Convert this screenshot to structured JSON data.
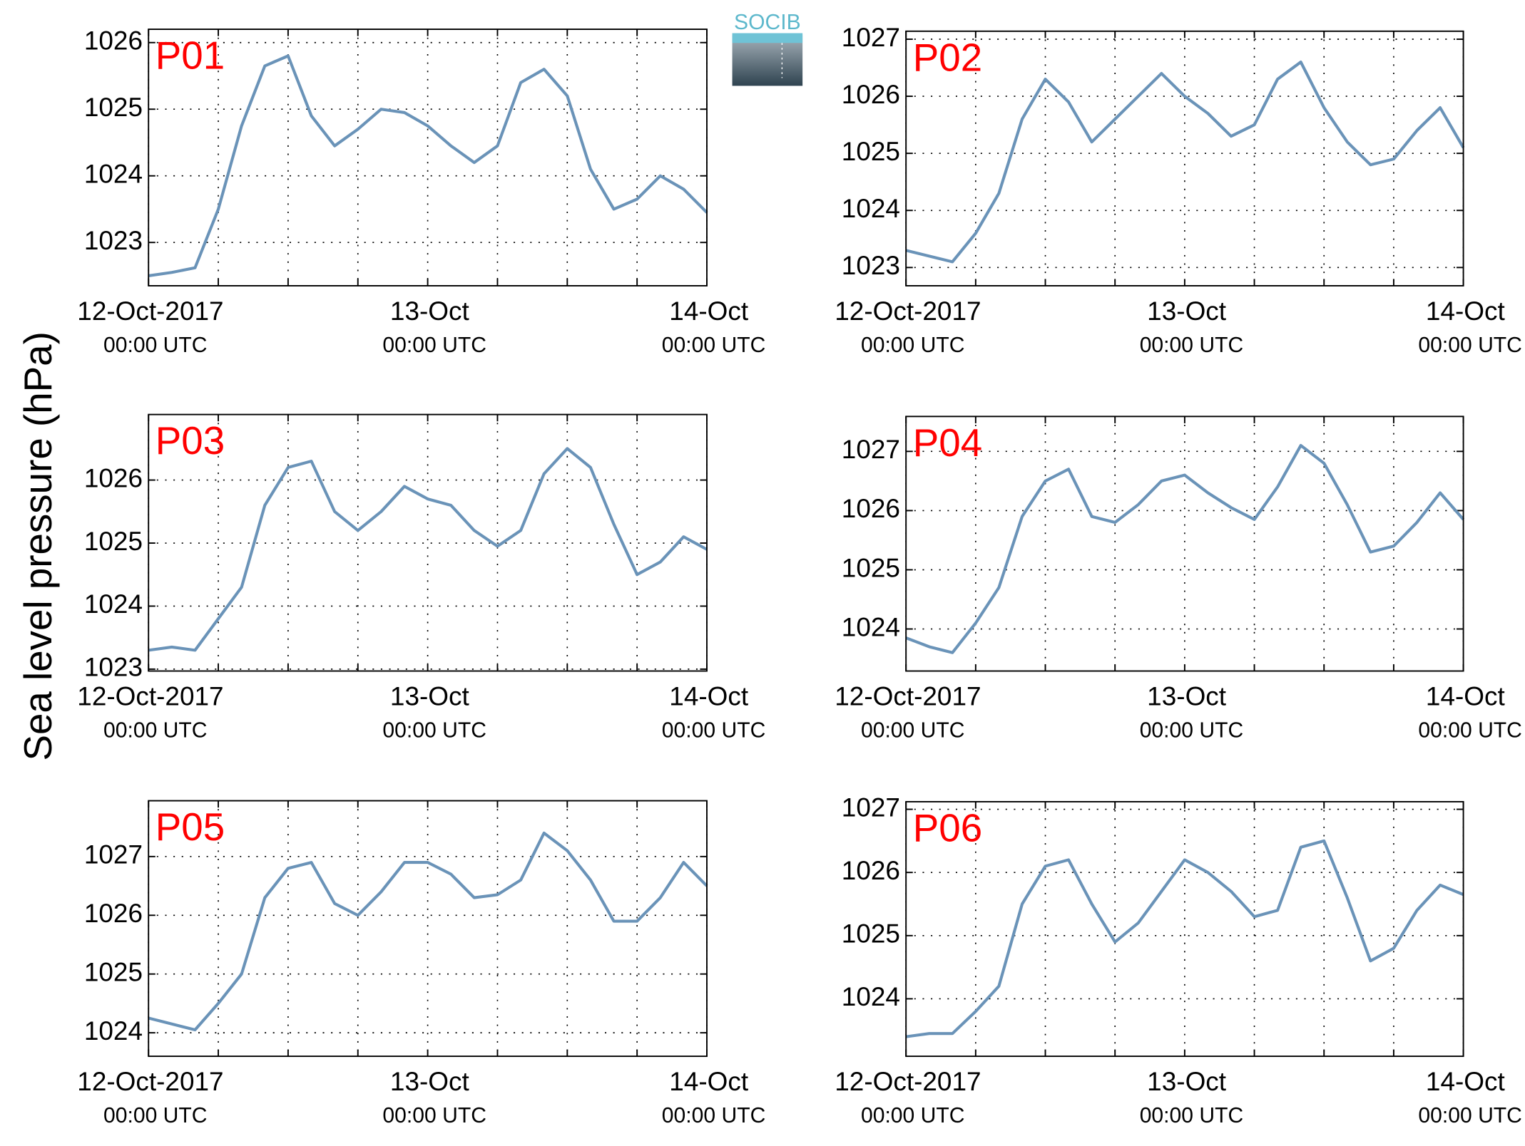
{
  "shared_ylabel": "Sea level pressure (hPa)",
  "logo": "SOCIB",
  "chart_data": [
    {
      "type": "line",
      "title": "P01",
      "color": "#6a93b8",
      "grid": true,
      "xlim": [
        "2017-10-12T00:00",
        "2017-10-14T00:00"
      ],
      "ylim": [
        1022.35,
        1026.2
      ],
      "yticks": [
        1023,
        1024,
        1025,
        1026
      ],
      "xticks": [
        {
          "value": "2017-10-12T00:00",
          "label": [
            "12-Oct-2017",
            "00:00 UTC"
          ]
        },
        {
          "value": "2017-10-12T06:00",
          "label": null
        },
        {
          "value": "2017-10-12T12:00",
          "label": null
        },
        {
          "value": "2017-10-12T18:00",
          "label": null
        },
        {
          "value": "2017-10-13T00:00",
          "label": [
            "13-Oct",
            "00:00 UTC"
          ]
        },
        {
          "value": "2017-10-13T06:00",
          "label": null
        },
        {
          "value": "2017-10-13T12:00",
          "label": null
        },
        {
          "value": "2017-10-13T18:00",
          "label": null
        },
        {
          "value": "2017-10-14T00:00",
          "label": [
            "14-Oct",
            "00:00 UTC"
          ]
        }
      ],
      "x": [
        "2017-10-12T00:00",
        "2017-10-12T02:00",
        "2017-10-12T04:00",
        "2017-10-12T06:00",
        "2017-10-12T08:00",
        "2017-10-12T10:00",
        "2017-10-12T12:00",
        "2017-10-12T14:00",
        "2017-10-12T16:00",
        "2017-10-12T18:00",
        "2017-10-12T20:00",
        "2017-10-12T22:00",
        "2017-10-13T00:00",
        "2017-10-13T02:00",
        "2017-10-13T04:00",
        "2017-10-13T06:00",
        "2017-10-13T08:00",
        "2017-10-13T10:00",
        "2017-10-13T12:00",
        "2017-10-13T14:00",
        "2017-10-13T16:00",
        "2017-10-13T18:00",
        "2017-10-13T20:00",
        "2017-10-13T22:00",
        "2017-10-14T00:00"
      ],
      "values": [
        1022.5,
        1022.55,
        1022.62,
        1023.5,
        1024.75,
        1025.65,
        1025.8,
        1024.9,
        1024.45,
        1024.7,
        1025.0,
        1024.95,
        1024.75,
        1024.45,
        1024.2,
        1024.45,
        1025.4,
        1025.6,
        1025.2,
        1024.1,
        1023.5,
        1023.65,
        1024.0,
        1023.8,
        1023.45
      ]
    },
    {
      "type": "line",
      "title": "P02",
      "color": "#6a93b8",
      "grid": true,
      "xlim": [
        "2017-10-12T00:00",
        "2017-10-14T00:00"
      ],
      "ylim": [
        1022.68,
        1027.14
      ],
      "yticks": [
        1023,
        1024,
        1025,
        1026,
        1027
      ],
      "xticks": [
        {
          "value": "2017-10-12T00:00",
          "label": [
            "12-Oct-2017",
            "00:00 UTC"
          ]
        },
        {
          "value": "2017-10-12T06:00",
          "label": null
        },
        {
          "value": "2017-10-12T12:00",
          "label": null
        },
        {
          "value": "2017-10-12T18:00",
          "label": null
        },
        {
          "value": "2017-10-13T00:00",
          "label": [
            "13-Oct",
            "00:00 UTC"
          ]
        },
        {
          "value": "2017-10-13T06:00",
          "label": null
        },
        {
          "value": "2017-10-13T12:00",
          "label": null
        },
        {
          "value": "2017-10-13T18:00",
          "label": null
        },
        {
          "value": "2017-10-14T00:00",
          "label": [
            "14-Oct",
            "00:00 UTC"
          ]
        }
      ],
      "x": [
        "2017-10-12T00:00",
        "2017-10-12T02:00",
        "2017-10-12T04:00",
        "2017-10-12T06:00",
        "2017-10-12T08:00",
        "2017-10-12T10:00",
        "2017-10-12T12:00",
        "2017-10-12T14:00",
        "2017-10-12T16:00",
        "2017-10-12T18:00",
        "2017-10-12T20:00",
        "2017-10-12T22:00",
        "2017-10-13T00:00",
        "2017-10-13T02:00",
        "2017-10-13T04:00",
        "2017-10-13T06:00",
        "2017-10-13T08:00",
        "2017-10-13T10:00",
        "2017-10-13T12:00",
        "2017-10-13T14:00",
        "2017-10-13T16:00",
        "2017-10-13T18:00",
        "2017-10-13T20:00",
        "2017-10-13T22:00",
        "2017-10-14T00:00"
      ],
      "values": [
        1023.3,
        1023.2,
        1023.1,
        1023.6,
        1024.3,
        1025.6,
        1026.3,
        1025.9,
        1025.2,
        1025.6,
        1026.0,
        1026.4,
        1026.0,
        1025.7,
        1025.3,
        1025.5,
        1026.3,
        1026.6,
        1025.8,
        1025.2,
        1024.8,
        1024.9,
        1025.4,
        1025.8,
        1025.1
      ]
    },
    {
      "type": "line",
      "title": "P03",
      "color": "#6a93b8",
      "grid": true,
      "xlim": [
        "2017-10-12T00:00",
        "2017-10-14T00:00"
      ],
      "ylim": [
        1022.97,
        1027.04
      ],
      "yticks": [
        1023,
        1024,
        1025,
        1026
      ],
      "xticks": [
        {
          "value": "2017-10-12T00:00",
          "label": [
            "12-Oct-2017",
            "00:00 UTC"
          ]
        },
        {
          "value": "2017-10-12T06:00",
          "label": null
        },
        {
          "value": "2017-10-12T12:00",
          "label": null
        },
        {
          "value": "2017-10-12T18:00",
          "label": null
        },
        {
          "value": "2017-10-13T00:00",
          "label": [
            "13-Oct",
            "00:00 UTC"
          ]
        },
        {
          "value": "2017-10-13T06:00",
          "label": null
        },
        {
          "value": "2017-10-13T12:00",
          "label": null
        },
        {
          "value": "2017-10-13T18:00",
          "label": null
        },
        {
          "value": "2017-10-14T00:00",
          "label": [
            "14-Oct",
            "00:00 UTC"
          ]
        }
      ],
      "x": [
        "2017-10-12T00:00",
        "2017-10-12T02:00",
        "2017-10-12T04:00",
        "2017-10-12T06:00",
        "2017-10-12T08:00",
        "2017-10-12T10:00",
        "2017-10-12T12:00",
        "2017-10-12T14:00",
        "2017-10-12T16:00",
        "2017-10-12T18:00",
        "2017-10-12T20:00",
        "2017-10-12T22:00",
        "2017-10-13T00:00",
        "2017-10-13T02:00",
        "2017-10-13T04:00",
        "2017-10-13T06:00",
        "2017-10-13T08:00",
        "2017-10-13T10:00",
        "2017-10-13T12:00",
        "2017-10-13T14:00",
        "2017-10-13T16:00",
        "2017-10-13T18:00",
        "2017-10-13T20:00",
        "2017-10-13T22:00",
        "2017-10-14T00:00"
      ],
      "values": [
        1023.3,
        1023.35,
        1023.3,
        1023.8,
        1024.3,
        1025.6,
        1026.2,
        1026.3,
        1025.5,
        1025.2,
        1025.5,
        1025.9,
        1025.7,
        1025.6,
        1025.2,
        1024.95,
        1025.2,
        1026.1,
        1026.5,
        1026.2,
        1025.3,
        1024.5,
        1024.7,
        1025.1,
        1024.9
      ]
    },
    {
      "type": "line",
      "title": "P04",
      "color": "#6a93b8",
      "grid": true,
      "xlim": [
        "2017-10-12T00:00",
        "2017-10-14T00:00"
      ],
      "ylim": [
        1023.29,
        1027.59
      ],
      "yticks": [
        1024,
        1025,
        1026,
        1027
      ],
      "xticks": [
        {
          "value": "2017-10-12T00:00",
          "label": [
            "12-Oct-2017",
            "00:00 UTC"
          ]
        },
        {
          "value": "2017-10-12T06:00",
          "label": null
        },
        {
          "value": "2017-10-12T12:00",
          "label": null
        },
        {
          "value": "2017-10-12T18:00",
          "label": null
        },
        {
          "value": "2017-10-13T00:00",
          "label": [
            "13-Oct",
            "00:00 UTC"
          ]
        },
        {
          "value": "2017-10-13T06:00",
          "label": null
        },
        {
          "value": "2017-10-13T12:00",
          "label": null
        },
        {
          "value": "2017-10-13T18:00",
          "label": null
        },
        {
          "value": "2017-10-14T00:00",
          "label": [
            "14-Oct",
            "00:00 UTC"
          ]
        }
      ],
      "x": [
        "2017-10-12T00:00",
        "2017-10-12T02:00",
        "2017-10-12T04:00",
        "2017-10-12T06:00",
        "2017-10-12T08:00",
        "2017-10-12T10:00",
        "2017-10-12T12:00",
        "2017-10-12T14:00",
        "2017-10-12T16:00",
        "2017-10-12T18:00",
        "2017-10-12T20:00",
        "2017-10-12T22:00",
        "2017-10-13T00:00",
        "2017-10-13T02:00",
        "2017-10-13T04:00",
        "2017-10-13T06:00",
        "2017-10-13T08:00",
        "2017-10-13T10:00",
        "2017-10-13T12:00",
        "2017-10-13T14:00",
        "2017-10-13T16:00",
        "2017-10-13T18:00",
        "2017-10-13T20:00",
        "2017-10-13T22:00",
        "2017-10-14T00:00"
      ],
      "values": [
        1023.85,
        1023.7,
        1023.6,
        1024.1,
        1024.7,
        1025.9,
        1026.5,
        1026.7,
        1025.9,
        1025.8,
        1026.1,
        1026.5,
        1026.6,
        1026.3,
        1026.05,
        1025.85,
        1026.4,
        1027.1,
        1026.8,
        1026.1,
        1025.3,
        1025.4,
        1025.8,
        1026.3,
        1025.85
      ]
    },
    {
      "type": "line",
      "title": "P05",
      "color": "#6a93b8",
      "grid": true,
      "xlim": [
        "2017-10-12T00:00",
        "2017-10-14T00:00"
      ],
      "ylim": [
        1023.6,
        1027.95
      ],
      "yticks": [
        1024,
        1025,
        1026,
        1027
      ],
      "xticks": [
        {
          "value": "2017-10-12T00:00",
          "label": [
            "12-Oct-2017",
            "00:00 UTC"
          ]
        },
        {
          "value": "2017-10-12T06:00",
          "label": null
        },
        {
          "value": "2017-10-12T12:00",
          "label": null
        },
        {
          "value": "2017-10-12T18:00",
          "label": null
        },
        {
          "value": "2017-10-13T00:00",
          "label": [
            "13-Oct",
            "00:00 UTC"
          ]
        },
        {
          "value": "2017-10-13T06:00",
          "label": null
        },
        {
          "value": "2017-10-13T12:00",
          "label": null
        },
        {
          "value": "2017-10-13T18:00",
          "label": null
        },
        {
          "value": "2017-10-14T00:00",
          "label": [
            "14-Oct",
            "00:00 UTC"
          ]
        }
      ],
      "x": [
        "2017-10-12T00:00",
        "2017-10-12T02:00",
        "2017-10-12T04:00",
        "2017-10-12T06:00",
        "2017-10-12T08:00",
        "2017-10-12T10:00",
        "2017-10-12T12:00",
        "2017-10-12T14:00",
        "2017-10-12T16:00",
        "2017-10-12T18:00",
        "2017-10-12T20:00",
        "2017-10-12T22:00",
        "2017-10-13T00:00",
        "2017-10-13T02:00",
        "2017-10-13T04:00",
        "2017-10-13T06:00",
        "2017-10-13T08:00",
        "2017-10-13T10:00",
        "2017-10-13T12:00",
        "2017-10-13T14:00",
        "2017-10-13T16:00",
        "2017-10-13T18:00",
        "2017-10-13T20:00",
        "2017-10-13T22:00",
        "2017-10-14T00:00"
      ],
      "values": [
        1024.25,
        1024.15,
        1024.05,
        1024.5,
        1025.0,
        1026.3,
        1026.8,
        1026.9,
        1026.2,
        1026.0,
        1026.4,
        1026.9,
        1026.9,
        1026.7,
        1026.3,
        1026.35,
        1026.6,
        1027.4,
        1027.1,
        1026.6,
        1025.9,
        1025.9,
        1026.3,
        1026.9,
        1026.5
      ]
    },
    {
      "type": "line",
      "title": "P06",
      "color": "#6a93b8",
      "grid": true,
      "xlim": [
        "2017-10-12T00:00",
        "2017-10-14T00:00"
      ],
      "ylim": [
        1023.09,
        1027.12
      ],
      "yticks": [
        1024,
        1025,
        1026,
        1027
      ],
      "xticks": [
        {
          "value": "2017-10-12T00:00",
          "label": [
            "12-Oct-2017",
            "00:00 UTC"
          ]
        },
        {
          "value": "2017-10-12T06:00",
          "label": null
        },
        {
          "value": "2017-10-12T12:00",
          "label": null
        },
        {
          "value": "2017-10-12T18:00",
          "label": null
        },
        {
          "value": "2017-10-13T00:00",
          "label": [
            "13-Oct",
            "00:00 UTC"
          ]
        },
        {
          "value": "2017-10-13T06:00",
          "label": null
        },
        {
          "value": "2017-10-13T12:00",
          "label": null
        },
        {
          "value": "2017-10-13T18:00",
          "label": null
        },
        {
          "value": "2017-10-14T00:00",
          "label": [
            "14-Oct",
            "00:00 UTC"
          ]
        }
      ],
      "x": [
        "2017-10-12T00:00",
        "2017-10-12T02:00",
        "2017-10-12T04:00",
        "2017-10-12T06:00",
        "2017-10-12T08:00",
        "2017-10-12T10:00",
        "2017-10-12T12:00",
        "2017-10-12T14:00",
        "2017-10-12T16:00",
        "2017-10-12T18:00",
        "2017-10-12T20:00",
        "2017-10-12T22:00",
        "2017-10-13T00:00",
        "2017-10-13T02:00",
        "2017-10-13T04:00",
        "2017-10-13T06:00",
        "2017-10-13T08:00",
        "2017-10-13T10:00",
        "2017-10-13T12:00",
        "2017-10-13T14:00",
        "2017-10-13T16:00",
        "2017-10-13T18:00",
        "2017-10-13T20:00",
        "2017-10-13T22:00",
        "2017-10-14T00:00"
      ],
      "values": [
        1023.4,
        1023.45,
        1023.45,
        1023.8,
        1024.2,
        1025.5,
        1026.1,
        1026.2,
        1025.5,
        1024.9,
        1025.2,
        1025.7,
        1026.2,
        1026.0,
        1025.7,
        1025.3,
        1025.4,
        1026.4,
        1026.5,
        1025.6,
        1024.6,
        1024.8,
        1025.4,
        1025.8,
        1025.65
      ]
    }
  ]
}
